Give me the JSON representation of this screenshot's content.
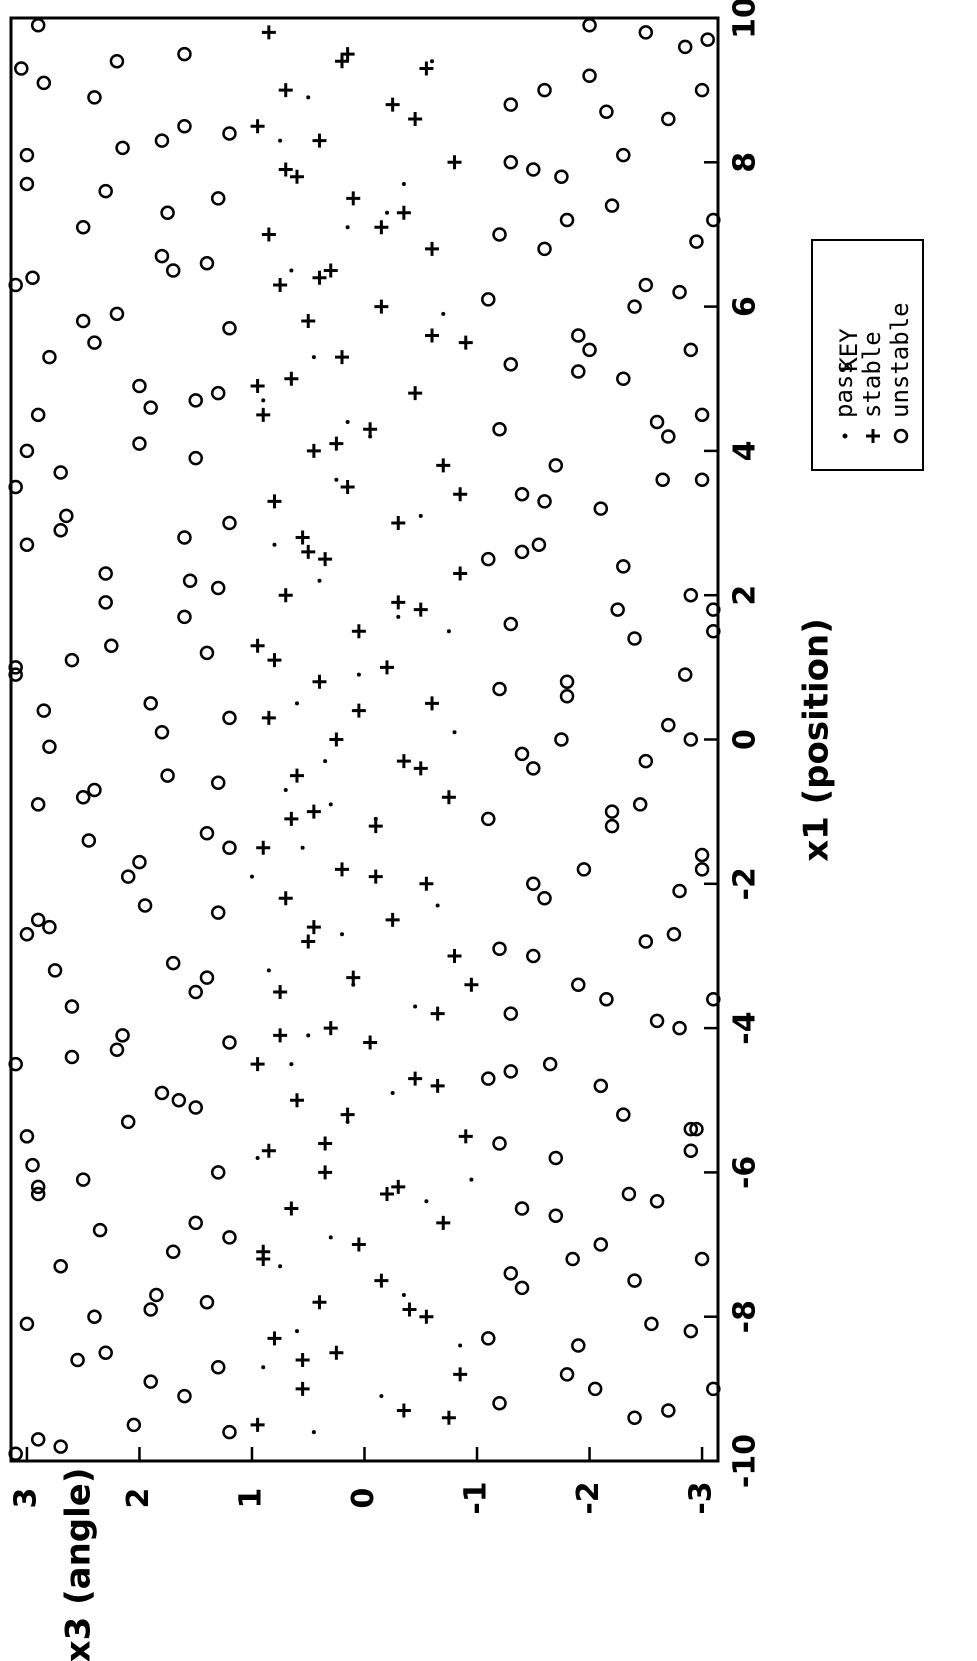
{
  "chart_data": {
    "type": "scatter",
    "title": "",
    "xlabel": "x1 (position)",
    "ylabel": "x3 (angle)",
    "xlim": [
      -10,
      10
    ],
    "ylim": [
      -3.14159,
      3.14159
    ],
    "x_ticks": [
      "-10",
      "-8",
      "-6",
      "-4",
      "-2",
      "0",
      "2",
      "4",
      "6",
      "8",
      "10"
    ],
    "y_ticks": [
      "-3",
      "-2",
      "-1",
      "0",
      "1",
      "2",
      "3"
    ],
    "grid": false,
    "legend_placement": "right",
    "legend_title": "KEY",
    "series": [
      {
        "name": "pass",
        "marker": "dot",
        "x": [
          -9.6,
          -9.1,
          -8.7,
          -8.2,
          -7.7,
          -7.3,
          -6.9,
          -6.4,
          -5.8,
          -5.3,
          -4.9,
          -4.5,
          -4.1,
          -3.7,
          -3.2,
          -2.7,
          -2.3,
          -1.9,
          -1.5,
          -1.1,
          -0.7,
          -0.3,
          0.1,
          0.5,
          0.9,
          1.3,
          1.7,
          2.2,
          2.7,
          3.1,
          3.6,
          4.2,
          4.7,
          5.3,
          5.9,
          6.5,
          7.1,
          7.7,
          8.3,
          8.9,
          9.4,
          -8.4,
          -6.1,
          -3.4,
          -0.9,
          1.5,
          4.4,
          7.3
        ],
        "y": [
          0.45,
          -0.15,
          0.9,
          0.6,
          -0.35,
          0.75,
          0.3,
          -0.55,
          0.95,
          0.15,
          -0.25,
          0.65,
          0.5,
          -0.45,
          0.85,
          0.2,
          -0.65,
          1.0,
          0.55,
          -0.1,
          0.7,
          0.35,
          -0.8,
          0.6,
          0.05,
          0.95,
          -0.3,
          0.4,
          0.8,
          -0.5,
          0.25,
          -0.05,
          0.9,
          0.45,
          -0.7,
          0.65,
          0.15,
          -0.35,
          0.75,
          0.5,
          -0.6,
          -0.85,
          -0.95,
          0.1,
          0.3,
          -0.75,
          0.15,
          -0.2
        ]
      },
      {
        "name": "stable",
        "marker": "plus",
        "x": [
          -9.5,
          -9.3,
          -9.0,
          -8.8,
          -8.5,
          -8.3,
          -8.0,
          -7.8,
          -7.5,
          -7.2,
          -7.0,
          -6.7,
          -6.5,
          -6.2,
          -6.0,
          -5.7,
          -5.5,
          -5.2,
          -5.0,
          -4.7,
          -4.5,
          -4.2,
          -4.0,
          -3.8,
          -3.5,
          -3.3,
          -3.0,
          -2.8,
          -2.5,
          -2.2,
          -2.0,
          -1.8,
          -1.5,
          -1.2,
          -1.0,
          -0.8,
          -0.5,
          -0.3,
          0.0,
          0.3,
          0.5,
          0.8,
          1.0,
          1.3,
          1.5,
          1.8,
          2.0,
          2.3,
          2.5,
          2.8,
          3.0,
          3.3,
          3.5,
          3.8,
          4.0,
          4.3,
          4.5,
          4.8,
          5.0,
          5.3,
          5.5,
          5.8,
          6.0,
          6.3,
          6.5,
          6.8,
          7.0,
          7.3,
          7.5,
          7.8,
          8.0,
          8.3,
          8.5,
          8.8,
          9.0,
          9.3,
          9.5,
          9.8,
          -9.4,
          -8.6,
          -7.9,
          -7.1,
          -6.3,
          -5.6,
          -4.8,
          -4.1,
          -3.4,
          -2.6,
          -1.9,
          -1.1,
          -0.4,
          0.4,
          1.1,
          1.9,
          2.6,
          3.4,
          4.1,
          4.9,
          5.6,
          6.4,
          7.1,
          7.9,
          8.6,
          9.4
        ],
        "y": [
          0.95,
          -0.35,
          0.55,
          -0.85,
          0.25,
          0.8,
          -0.55,
          0.4,
          -0.15,
          0.9,
          0.05,
          -0.7,
          0.65,
          -0.3,
          0.35,
          0.85,
          -0.9,
          0.15,
          0.6,
          -0.45,
          0.95,
          -0.05,
          0.3,
          -0.65,
          0.75,
          0.1,
          -0.8,
          0.5,
          -0.25,
          0.7,
          -0.55,
          0.2,
          0.9,
          -0.1,
          0.45,
          -0.75,
          0.6,
          -0.35,
          0.25,
          0.85,
          -0.6,
          0.4,
          -0.2,
          0.95,
          0.05,
          -0.5,
          0.7,
          -0.85,
          0.35,
          0.55,
          -0.3,
          0.8,
          0.15,
          -0.7,
          0.45,
          -0.05,
          0.9,
          -0.45,
          0.65,
          0.2,
          -0.9,
          0.5,
          -0.15,
          0.75,
          0.3,
          -0.6,
          0.85,
          -0.35,
          0.1,
          0.6,
          -0.8,
          0.4,
          0.95,
          -0.25,
          0.7,
          -0.55,
          0.15,
          0.85,
          -0.75,
          0.55,
          -0.4,
          0.9,
          -0.2,
          0.35,
          -0.65,
          0.75,
          -0.95,
          0.45,
          -0.1,
          0.65,
          -0.5,
          0.05,
          0.8,
          -0.3,
          0.5,
          -0.85,
          0.25,
          0.95,
          -0.6,
          0.4,
          -0.15,
          0.7,
          -0.45,
          0.2
        ]
      },
      {
        "name": "unstable",
        "marker": "circle",
        "x": [
          -9.7,
          -9.4,
          -9.1,
          -8.8,
          -8.5,
          -8.2,
          -7.9,
          -7.6,
          -7.3,
          -7.0,
          -6.7,
          -6.4,
          -6.1,
          -5.8,
          -5.5,
          -5.2,
          -4.9,
          -4.6,
          -4.3,
          -4.0,
          -3.7,
          -3.4,
          -3.1,
          -2.8,
          -2.5,
          -2.2,
          -1.9,
          -1.6,
          -1.3,
          -1.0,
          -0.7,
          -0.4,
          -0.1,
          0.2,
          0.5,
          0.8,
          1.1,
          1.4,
          1.7,
          2.0,
          2.3,
          2.6,
          2.9,
          3.2,
          3.5,
          3.8,
          4.1,
          4.4,
          4.7,
          5.0,
          5.3,
          5.6,
          5.9,
          6.2,
          6.5,
          6.8,
          7.1,
          7.4,
          7.7,
          8.0,
          8.3,
          8.6,
          8.9,
          9.2,
          9.5,
          9.8,
          -9.6,
          -9.2,
          -8.7,
          -8.3,
          -7.8,
          -7.4,
          -6.9,
          -6.5,
          -6.0,
          -5.6,
          -5.1,
          -4.7,
          -4.2,
          -3.8,
          -3.3,
          -2.9,
          -2.4,
          -2.0,
          -1.5,
          -1.1,
          -0.6,
          -0.2,
          0.3,
          0.7,
          1.2,
          1.6,
          2.1,
          2.5,
          3.0,
          3.4,
          3.9,
          4.3,
          4.8,
          5.2,
          5.7,
          6.1,
          6.6,
          7.0,
          7.5,
          7.9,
          8.4,
          8.8,
          9.3,
          9.7,
          -9.5,
          -9.0,
          -8.6,
          -8.1,
          -7.7,
          -7.2,
          -6.8,
          -6.3,
          -5.9,
          -5.4,
          -5.0,
          -4.5,
          -4.1,
          -3.6,
          -3.2,
          -2.7,
          -2.3,
          -1.8,
          -1.4,
          -0.9,
          -0.5,
          0.0,
          0.4,
          0.9,
          1.3,
          1.8,
          2.2,
          2.7,
          3.1,
          3.6,
          4.0,
          4.5,
          4.9,
          5.4,
          5.8,
          6.3,
          6.7,
          7.2,
          7.6,
          8.1,
          8.5,
          9.0,
          9.4,
          9.9,
          -9.8,
          -9.3,
          -8.9,
          -8.4,
          -8.0,
          -7.5,
          -7.1,
          -6.6,
          -6.2,
          -5.7,
          -5.3,
          -4.8,
          -4.4,
          -3.9,
          -3.5,
          -3.0,
          -2.6,
          -2.1,
          -1.7,
          -1.2,
          -0.8,
          -0.3,
          0.1,
          0.6,
          1.0,
          1.5,
          1.9,
          2.4,
          2.8,
          3.3,
          3.7,
          4.2,
          4.6,
          5.1,
          5.5,
          6.0,
          6.4,
          6.9,
          7.3,
          7.8,
          8.2,
          8.7,
          9.1,
          9.6,
          -9.9,
          -9.0,
          -8.1,
          -7.2,
          -6.3,
          -5.4,
          -4.5,
          -3.6,
          -2.7,
          -1.8,
          -0.9,
          0.0,
          0.9,
          1.8,
          2.7,
          3.6,
          4.5,
          5.4,
          6.3,
          7.2,
          8.1,
          9.0,
          9.9
        ],
        "y": [
          2.9,
          -2.4,
          1.6,
          -1.8,
          2.3,
          -2.9,
          1.9,
          -1.4,
          2.7,
          -2.1,
          1.5,
          -2.6,
          2.5,
          -1.7,
          3.0,
          -2.3,
          1.8,
          -1.3,
          2.2,
          -2.8,
          2.6,
          -1.9,
          1.7,
          -2.5,
          2.9,
          -1.6,
          2.1,
          -3.0,
          1.4,
          -2.2,
          2.4,
          -1.5,
          2.8,
          -2.7,
          1.9,
          -1.8,
          2.6,
          -2.4,
          1.6,
          -2.9,
          2.3,
          -1.4,
          2.7,
          -2.1,
          3.1,
          -1.7,
          2.0,
          -2.6,
          1.5,
          -2.3,
          2.8,
          -1.9,
          2.2,
          -2.8,
          1.7,
          -1.6,
          2.5,
          -2.2,
          3.0,
          -1.3,
          1.8,
          -2.7,
          2.4,
          -2.0,
          1.6,
          -2.5,
          1.2,
          -1.2,
          1.3,
          -1.1,
          1.4,
          -1.3,
          1.2,
          -1.4,
          1.3,
          -1.2,
          1.5,
          -1.1,
          1.2,
          -1.3,
          1.4,
          -1.2,
          1.3,
          -1.5,
          1.2,
          -1.1,
          1.3,
          -1.4,
          1.2,
          -1.2,
          1.4,
          -1.3,
          1.3,
          -1.1,
          1.2,
          -1.4,
          1.5,
          -1.2,
          1.3,
          -1.3,
          1.2,
          -1.1,
          1.4,
          -1.2,
          1.3,
          -1.5,
          1.2,
          -1.3,
          3.05,
          -3.05,
          2.05,
          -2.05,
          2.55,
          -2.55,
          1.85,
          -1.85,
          2.35,
          -2.35,
          2.95,
          -2.95,
          1.65,
          -1.65,
          2.15,
          -2.15,
          2.75,
          -2.75,
          1.95,
          -1.95,
          2.45,
          -2.45,
          1.75,
          -1.75,
          2.85,
          -2.85,
          2.25,
          -2.25,
          1.55,
          -1.55,
          2.65,
          -2.65,
          3.0,
          -3.0,
          2.0,
          -2.0,
          2.5,
          -2.5,
          1.8,
          -1.8,
          2.3,
          -2.3,
          1.6,
          -1.6,
          2.2,
          -2.0,
          2.7,
          -2.7,
          1.9,
          -1.9,
          2.4,
          -2.4,
          1.7,
          -1.7,
          2.9,
          -2.9,
          2.1,
          -2.1,
          2.6,
          -2.6,
          1.5,
          -1.5,
          2.8,
          -2.8,
          2.0,
          -2.2,
          2.5,
          -2.5,
          1.8,
          -1.8,
          3.1,
          -3.1,
          2.3,
          -2.3,
          1.6,
          -1.6,
          2.7,
          -2.7,
          1.9,
          -1.9,
          2.4,
          -2.4,
          2.95,
          -2.95,
          1.75,
          -1.75,
          2.15,
          -2.15,
          2.85,
          -2.85,
          3.1,
          -3.1,
          3.0,
          -3.0,
          2.9,
          -2.9,
          3.1,
          -3.1,
          3.0,
          -3.0,
          2.9,
          -2.9,
          3.1,
          -3.1,
          3.0,
          -3.0,
          2.9,
          -2.9,
          3.1,
          -3.1,
          3.0,
          -3.0,
          2.9
        ]
      }
    ]
  }
}
